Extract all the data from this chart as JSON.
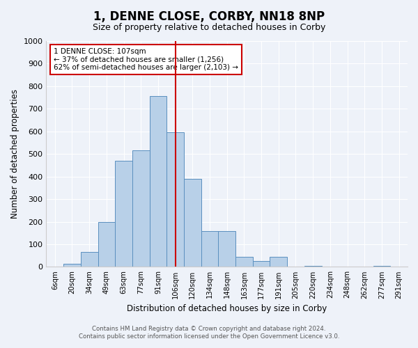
{
  "title": "1, DENNE CLOSE, CORBY, NN18 8NP",
  "subtitle": "Size of property relative to detached houses in Corby",
  "xlabel": "Distribution of detached houses by size in Corby",
  "ylabel": "Number of detached properties",
  "categories": [
    "6sqm",
    "20sqm",
    "34sqm",
    "49sqm",
    "63sqm",
    "77sqm",
    "91sqm",
    "106sqm",
    "120sqm",
    "134sqm",
    "148sqm",
    "163sqm",
    "177sqm",
    "191sqm",
    "205sqm",
    "220sqm",
    "234sqm",
    "248sqm",
    "262sqm",
    "277sqm",
    "291sqm"
  ],
  "values": [
    0,
    15,
    65,
    200,
    470,
    515,
    755,
    595,
    390,
    160,
    160,
    45,
    25,
    45,
    0,
    5,
    0,
    0,
    0,
    5,
    0
  ],
  "bar_color": "#b8d0e8",
  "bar_edge_color": "#5a8fbf",
  "vline_x_index": 7,
  "vline_color": "#cc0000",
  "annotation_title": "1 DENNE CLOSE: 107sqm",
  "annotation_line1": "← 37% of detached houses are smaller (1,256)",
  "annotation_line2": "62% of semi-detached houses are larger (2,103) →",
  "annotation_box_color": "#ffffff",
  "annotation_box_edge": "#cc0000",
  "ylim": [
    0,
    1000
  ],
  "yticks": [
    0,
    100,
    200,
    300,
    400,
    500,
    600,
    700,
    800,
    900,
    1000
  ],
  "footer1": "Contains HM Land Registry data © Crown copyright and database right 2024.",
  "footer2": "Contains public sector information licensed under the Open Government Licence v3.0.",
  "bg_color": "#eef2f9",
  "plot_bg_color": "#eef2f9"
}
